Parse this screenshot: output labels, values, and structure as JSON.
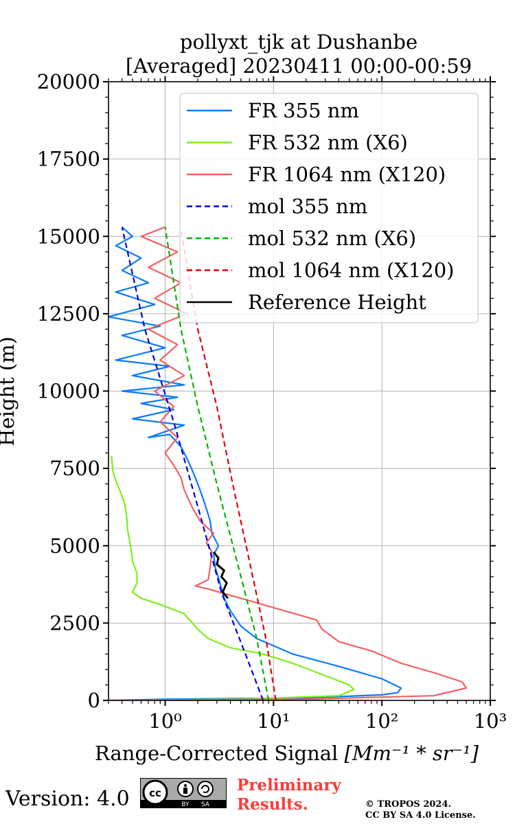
{
  "chart_data": {
    "type": "line",
    "title": "pollyxt_tjk at Dushanbe",
    "subtitle": "[Averaged] 20230411 00:00-00:59",
    "xlabel": "Range-Corrected Signal",
    "xlabel_unit": "[Mm⁻¹ * sr⁻¹]",
    "ylabel": "Height (m)",
    "xscale": "log",
    "xlim": [
      0.3,
      1000
    ],
    "ylim": [
      0,
      20000
    ],
    "x_tick_labels": [
      "10⁰",
      "10¹",
      "10²",
      "10³"
    ],
    "x_tick_values": [
      1,
      10,
      100,
      1000
    ],
    "y_ticks": [
      0,
      2500,
      5000,
      7500,
      10000,
      12500,
      15000,
      17500,
      20000
    ],
    "grid": true,
    "legend_position": "top-right",
    "series": [
      {
        "name": "FR 355 nm",
        "color": "#0a7bff",
        "style": "solid",
        "points": [
          [
            0.3,
            0
          ],
          [
            1,
            40
          ],
          [
            20,
            80
          ],
          [
            100,
            180
          ],
          [
            140,
            250
          ],
          [
            150,
            400
          ],
          [
            100,
            700
          ],
          [
            40,
            1100
          ],
          [
            15,
            1500
          ],
          [
            7,
            2000
          ],
          [
            5,
            2400
          ],
          [
            4,
            2900
          ],
          [
            3.5,
            3300
          ],
          [
            3.2,
            3800
          ],
          [
            2.9,
            4300
          ],
          [
            2.8,
            4700
          ],
          [
            3.1,
            5000
          ],
          [
            2.7,
            5400
          ],
          [
            2.6,
            5800
          ],
          [
            2.4,
            6200
          ],
          [
            2.2,
            6600
          ],
          [
            2.0,
            7000
          ],
          [
            1.8,
            7400
          ],
          [
            1.6,
            7800
          ],
          [
            1.4,
            8200
          ],
          [
            1.1,
            8600
          ],
          [
            0.7,
            8500
          ],
          [
            1.5,
            8900
          ],
          [
            0.5,
            9100
          ],
          [
            1.2,
            9400
          ],
          [
            0.6,
            9600
          ],
          [
            1.3,
            9800
          ],
          [
            0.4,
            10000
          ],
          [
            1.5,
            10200
          ],
          [
            0.5,
            10500
          ],
          [
            1.1,
            10800
          ],
          [
            0.35,
            11000
          ],
          [
            1.0,
            11400
          ],
          [
            0.4,
            11800
          ],
          [
            0.9,
            12100
          ],
          [
            0.3,
            12400
          ],
          [
            0.8,
            12800
          ],
          [
            0.35,
            13200
          ],
          [
            0.7,
            13500
          ],
          [
            0.4,
            13900
          ],
          [
            0.6,
            14300
          ],
          [
            0.35,
            14700
          ],
          [
            0.5,
            15000
          ],
          [
            0.4,
            15300
          ]
        ]
      },
      {
        "name": "FR 532 nm (X6)",
        "color": "#7cf01a",
        "style": "solid",
        "points": [
          [
            0.3,
            0
          ],
          [
            5,
            40
          ],
          [
            40,
            150
          ],
          [
            55,
            350
          ],
          [
            50,
            500
          ],
          [
            30,
            800
          ],
          [
            15,
            1200
          ],
          [
            8,
            1500
          ],
          [
            4,
            1700
          ],
          [
            2.5,
            2000
          ],
          [
            2,
            2300
          ],
          [
            1.5,
            2800
          ],
          [
            0.9,
            3100
          ],
          [
            0.6,
            3300
          ],
          [
            0.5,
            3500
          ],
          [
            0.55,
            3800
          ],
          [
            0.55,
            4100
          ],
          [
            0.5,
            4500
          ],
          [
            0.48,
            5000
          ],
          [
            0.45,
            5500
          ],
          [
            0.44,
            6000
          ],
          [
            0.42,
            6400
          ],
          [
            0.38,
            6800
          ],
          [
            0.35,
            7100
          ],
          [
            0.33,
            7400
          ],
          [
            0.32,
            7900
          ]
        ]
      },
      {
        "name": "FR 1064 nm (X120)",
        "color": "#f06262",
        "style": "solid",
        "points": [
          [
            0.3,
            0
          ],
          [
            20,
            40
          ],
          [
            300,
            150
          ],
          [
            600,
            400
          ],
          [
            550,
            600
          ],
          [
            300,
            900
          ],
          [
            150,
            1200
          ],
          [
            80,
            1600
          ],
          [
            40,
            1900
          ],
          [
            28,
            2300
          ],
          [
            25,
            2600
          ],
          [
            10,
            3000
          ],
          [
            5,
            3300
          ],
          [
            2.5,
            3600
          ],
          [
            1.9,
            3700
          ],
          [
            2.5,
            3900
          ],
          [
            2.6,
            4300
          ],
          [
            2.7,
            4800
          ],
          [
            2.4,
            5100
          ],
          [
            2.8,
            5400
          ],
          [
            2.1,
            5800
          ],
          [
            1.8,
            6200
          ],
          [
            1.5,
            6800
          ],
          [
            1.4,
            7200
          ],
          [
            1.2,
            7600
          ],
          [
            1.0,
            8000
          ],
          [
            1.3,
            8500
          ],
          [
            0.9,
            9000
          ],
          [
            1.2,
            9500
          ],
          [
            0.8,
            10000
          ],
          [
            1.5,
            10500
          ],
          [
            0.9,
            11000
          ],
          [
            1.3,
            11500
          ],
          [
            0.7,
            12000
          ],
          [
            1.6,
            12500
          ],
          [
            0.8,
            13000
          ],
          [
            1.4,
            13500
          ],
          [
            0.7,
            14000
          ],
          [
            1.3,
            14500
          ],
          [
            0.6,
            15000
          ],
          [
            1.0,
            15300
          ]
        ]
      },
      {
        "name": "mol 355 nm",
        "color": "#0000dd",
        "style": "dashed",
        "points": [
          [
            8,
            0
          ],
          [
            5.5,
            1500
          ],
          [
            3.3,
            3500
          ],
          [
            2.1,
            6000
          ],
          [
            1.2,
            9000
          ],
          [
            0.65,
            12000
          ],
          [
            0.4,
            15300
          ]
        ]
      },
      {
        "name": "mol 532 nm (X6)",
        "color": "#00b400",
        "style": "dashed",
        "points": [
          [
            9,
            0
          ],
          [
            7,
            2000
          ],
          [
            4.6,
            4500
          ],
          [
            3,
            7000
          ],
          [
            2,
            9500
          ],
          [
            1.4,
            12000
          ],
          [
            1,
            15300
          ]
        ]
      },
      {
        "name": "mol 1064 nm (X120)",
        "color": "#e00000",
        "style": "dashed",
        "points": [
          [
            10.5,
            0
          ],
          [
            8.5,
            2000
          ],
          [
            6,
            4500
          ],
          [
            4.2,
            7000
          ],
          [
            3,
            9500
          ],
          [
            2,
            12000
          ],
          [
            1.4,
            15200
          ]
        ]
      },
      {
        "name": "Reference Height",
        "color": "#000000",
        "style": "solid",
        "points": [
          [
            3.8,
            3300
          ],
          [
            3.4,
            3500
          ],
          [
            3.7,
            3800
          ],
          [
            3.3,
            4000
          ],
          [
            3.5,
            4200
          ],
          [
            3.0,
            4400
          ],
          [
            3.1,
            4600
          ],
          [
            2.8,
            4800
          ]
        ]
      }
    ]
  },
  "footer": {
    "version": "Version: 4.0",
    "cc_symbol": "cc",
    "cc_by": "BY",
    "cc_sa": "SA",
    "preliminary_line1": "Preliminary",
    "preliminary_line2": "Results.",
    "copyright_line1": "© TROPOS 2024.",
    "copyright_line2": "CC BY SA 4.0 License."
  }
}
